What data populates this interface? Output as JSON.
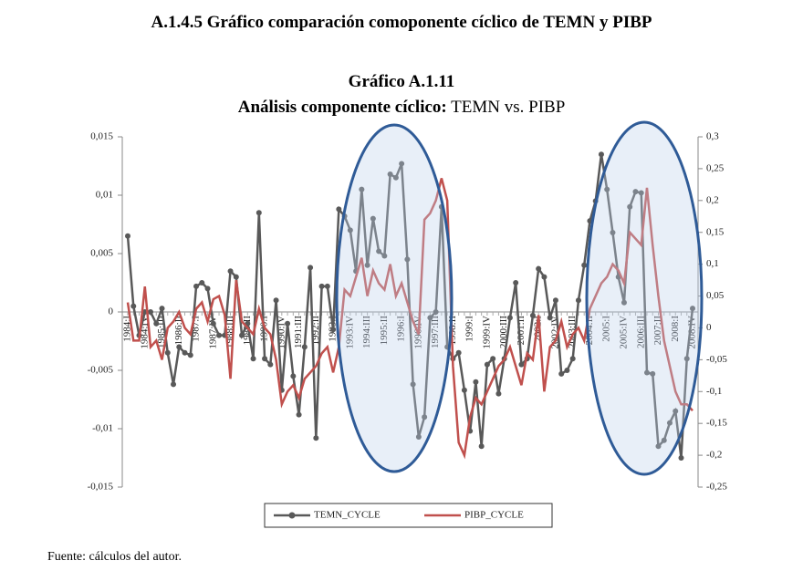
{
  "section_title": "A.1.4.5 Gráfico comparación comoponente cíclico de TEMN y PIBP",
  "chart_data": {
    "type": "line",
    "title": "Gráfico A.1.11",
    "subtitle": [
      "Análisis componente cíclico:",
      "TEMN vs. PIBP"
    ],
    "categories": [
      "1984:I",
      null,
      null,
      "1984:IV",
      null,
      null,
      "1985:III",
      null,
      null,
      "1986:II",
      null,
      null,
      "1987:I",
      null,
      null,
      "1987:IV",
      null,
      null,
      "1988:III",
      null,
      null,
      "1989:II",
      null,
      null,
      "1990:I",
      null,
      null,
      "1990:IV",
      null,
      null,
      "1991:III",
      null,
      null,
      "1992:II",
      null,
      null,
      "1993:I",
      null,
      null,
      "1993:IV",
      null,
      null,
      "1994:III",
      null,
      null,
      "1995:II",
      null,
      null,
      "1996:I",
      null,
      null,
      "1996:IV",
      null,
      null,
      "1997:III",
      null,
      null,
      "1998:II",
      null,
      null,
      "1999:I",
      null,
      null,
      "1999:IV",
      null,
      null,
      "2000:III",
      null,
      null,
      "2001:II",
      null,
      null,
      "2002:I",
      null,
      null,
      "2002:IV",
      null,
      null,
      "2003:III",
      null,
      null,
      "2004:II",
      null,
      null,
      "2005:I",
      null,
      null,
      "2005:IV",
      null,
      null,
      "2006:III",
      null,
      null,
      "2007:II",
      null,
      null,
      "2008:I",
      null,
      null,
      "2008:IV"
    ],
    "series": [
      {
        "name": "TEMN_CYCLE",
        "color": "#595959",
        "axis": "y",
        "values": [
          0.0065,
          0.0005,
          -0.002,
          0,
          0,
          -0.001,
          0.0003,
          -0.0035,
          -0.0062,
          -0.003,
          -0.0035,
          -0.0037,
          0.0022,
          0.0025,
          0.002,
          -0.001,
          -0.002,
          -0.002,
          0.0035,
          0.003,
          -0.002,
          -0.001,
          -0.004,
          0.0085,
          -0.004,
          -0.0045,
          0.001,
          -0.0067,
          -0.001,
          -0.0055,
          -0.0088,
          -0.003,
          0.0038,
          -0.0108,
          0.0022,
          0.0022,
          -0.0015,
          0.0088,
          0.0082,
          0.007,
          0.0035,
          0.0105,
          0.004,
          0.008,
          0.0052,
          0.0048,
          0.0118,
          0.0115,
          0.0127,
          0.0045,
          -0.0062,
          -0.0107,
          -0.009,
          -0.0005,
          0,
          0.009,
          -0.003,
          -0.004,
          -0.0035,
          -0.0067,
          -0.0102,
          -0.006,
          -0.0115,
          -0.0045,
          -0.004,
          -0.007,
          -0.004,
          -0.0005,
          0.0025,
          -0.0045,
          -0.004,
          -0.0003,
          0.0037,
          0.003,
          -0.0005,
          0.001,
          -0.0053,
          -0.005,
          -0.004,
          0.001,
          0.004,
          0.0078,
          0.0095,
          0.0135,
          0.0105,
          0.0068,
          0.003,
          0.0008,
          0.009,
          0.0103,
          0.0102,
          -0.0052,
          -0.0053,
          -0.0115,
          -0.011,
          -0.0095,
          -0.0085,
          -0.0125,
          -0.004,
          0.0003
        ]
      },
      {
        "name": "PIBP_CYCLE",
        "color": "#c0504d",
        "axis": "y2",
        "values": [
          0.04,
          -0.02,
          -0.02,
          0.065,
          -0.03,
          -0.02,
          -0.05,
          0,
          0.01,
          0.025,
          0,
          -0.01,
          0.03,
          0.04,
          0.01,
          0.045,
          0.05,
          0.02,
          -0.08,
          0.075,
          0.01,
          0,
          -0.01,
          0.03,
          0,
          -0.01,
          -0.05,
          -0.12,
          -0.1,
          -0.09,
          -0.11,
          -0.08,
          -0.07,
          -0.06,
          -0.04,
          -0.03,
          -0.07,
          -0.03,
          0.06,
          0.05,
          0.08,
          0.11,
          0.05,
          0.09,
          0.07,
          0.06,
          0.1,
          0.05,
          0.07,
          0.04,
          0.01,
          -0.01,
          0.17,
          0.18,
          0.2,
          0.235,
          0.2,
          -0.06,
          -0.18,
          -0.2,
          -0.14,
          -0.11,
          -0.12,
          -0.1,
          -0.08,
          -0.06,
          -0.05,
          -0.03,
          -0.06,
          -0.09,
          -0.04,
          -0.05,
          0.02,
          -0.1,
          -0.03,
          -0.02,
          0.01,
          -0.03,
          -0.01,
          0,
          -0.02,
          0.03,
          0.05,
          0.07,
          0.08,
          0.1,
          0.09,
          0.07,
          0.15,
          0.14,
          0.13,
          0.22,
          0.13,
          0.05,
          -0.02,
          -0.06,
          -0.1,
          -0.12,
          -0.12,
          -0.13
        ]
      }
    ],
    "ylim": [
      -0.015,
      0.015
    ],
    "yticks": [
      {
        "value": -0.015,
        "label": "-0,015"
      },
      {
        "value": -0.01,
        "label": "-0,01"
      },
      {
        "value": -0.005,
        "label": "-0,005"
      },
      0,
      {
        "value": 0.005,
        "label": "0,005"
      },
      {
        "value": 0.01,
        "label": "0,01"
      },
      {
        "value": 0.015,
        "label": "0,015"
      }
    ],
    "y2lim": [
      -0.25,
      0.3
    ],
    "y2ticks": [
      {
        "value": -0.25,
        "label": "-0,25"
      },
      {
        "value": -0.2,
        "label": "-0,2"
      },
      {
        "value": -0.15,
        "label": "-0,15"
      },
      {
        "value": -0.1,
        "label": "-0,1"
      },
      {
        "value": -0.05,
        "label": "-0,05"
      },
      0,
      {
        "value": 0.05,
        "label": "0,05"
      },
      {
        "value": 0.1,
        "label": "0,1"
      },
      {
        "value": 0.15,
        "label": "0,15"
      },
      {
        "value": 0.2,
        "label": "0,2"
      },
      {
        "value": 0.25,
        "label": "0,25"
      },
      {
        "value": 0.3,
        "label": "0,3"
      }
    ]
  },
  "footnote": "Fuente: cálculos del autor."
}
